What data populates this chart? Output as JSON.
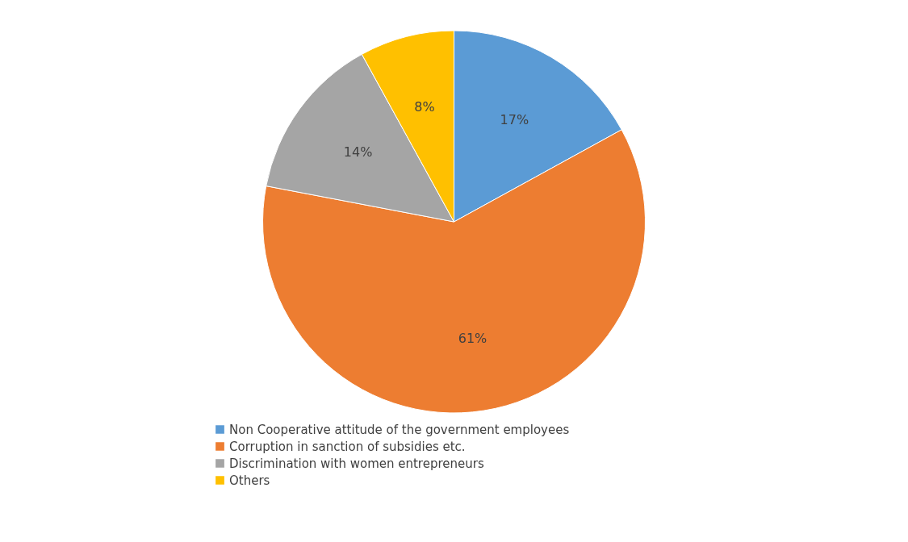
{
  "chart_data": {
    "type": "pie",
    "categories": [
      "Non Cooperative attitude of the government employees",
      "Corruption in sanction of subsidies etc.",
      "Discrimination with women entrepreneurs",
      "Others"
    ],
    "values": [
      17,
      61,
      14,
      8
    ],
    "colors": [
      "#5b9bd5",
      "#ed7d31",
      "#a5a5a5",
      "#ffc000"
    ],
    "value_labels": [
      "17%",
      "61%",
      "14%",
      "8%"
    ],
    "legend": "bottom"
  }
}
